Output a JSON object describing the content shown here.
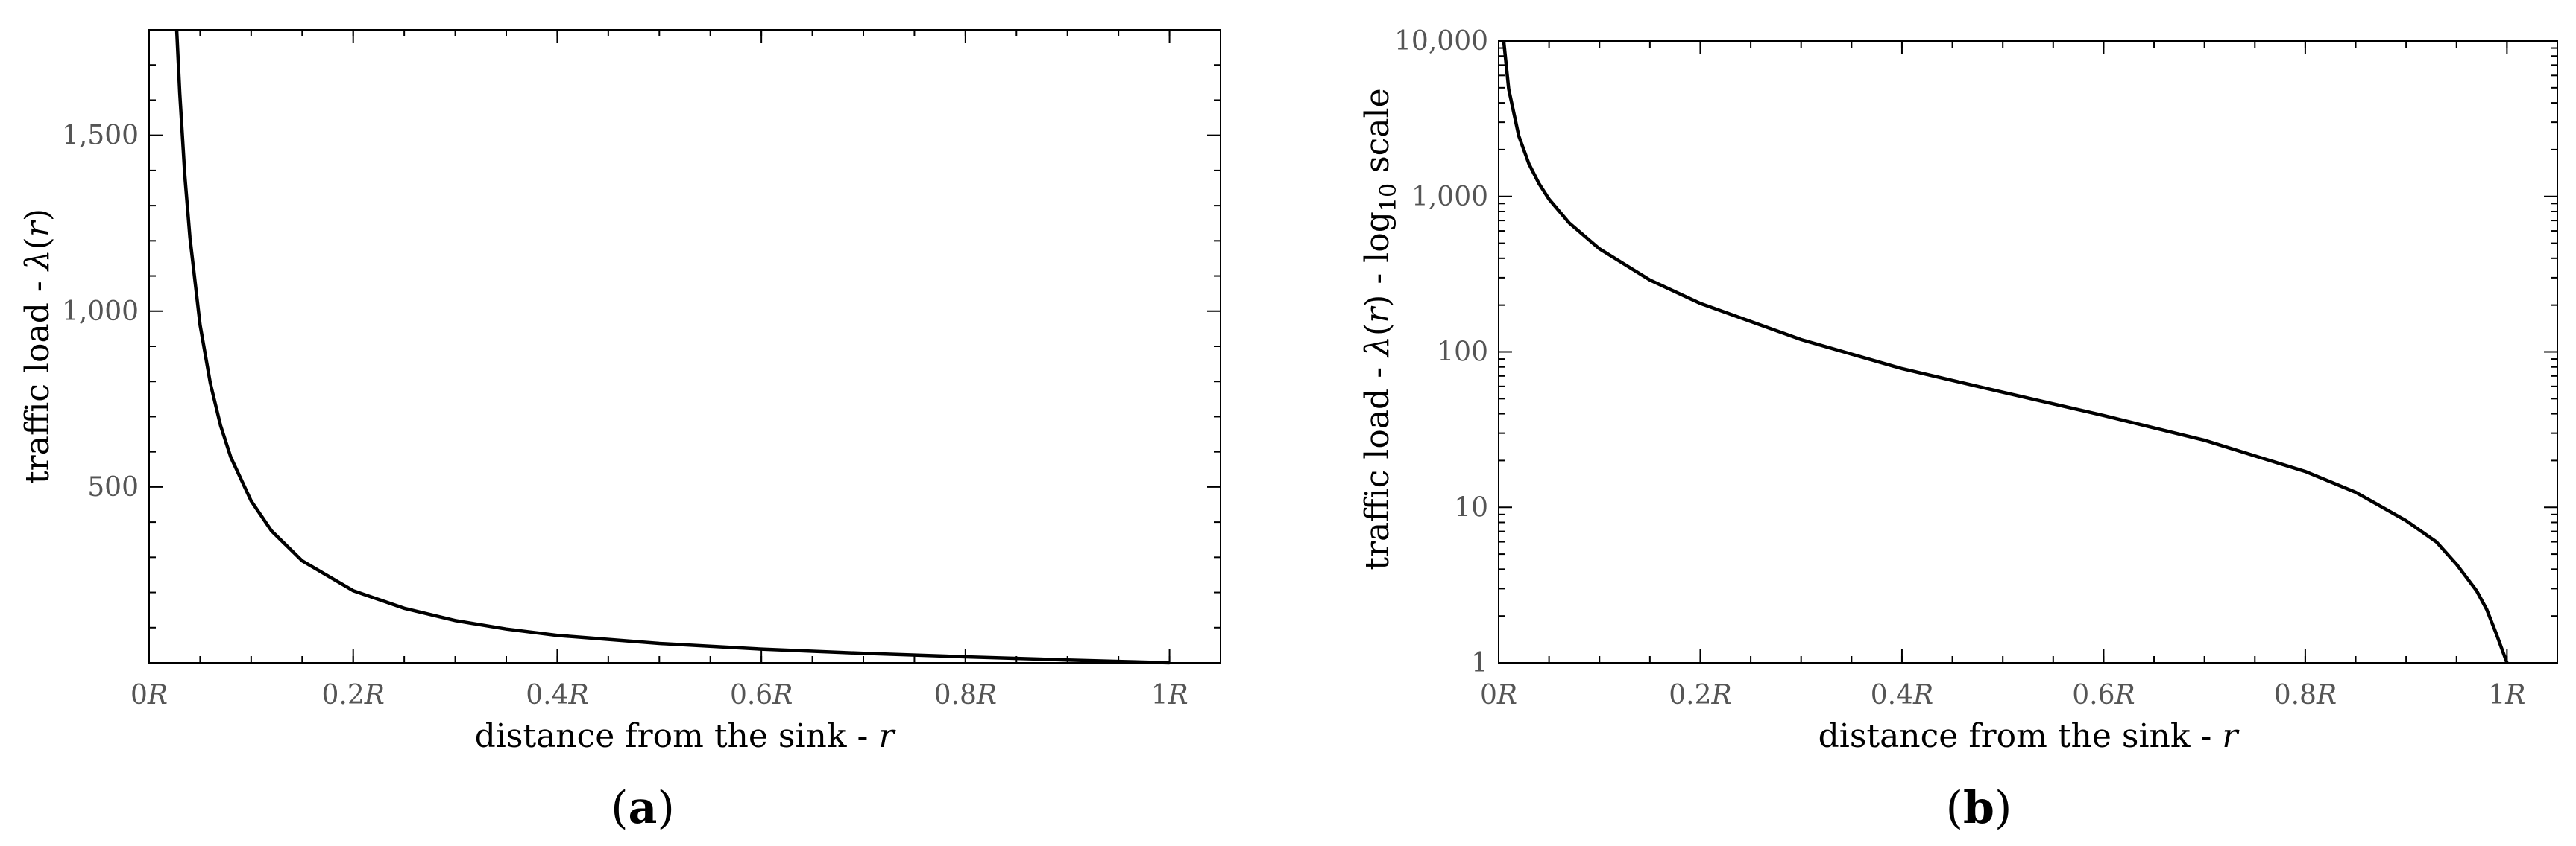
{
  "chart_data": [
    {
      "type": "line",
      "panel_label": {
        "open": "(",
        "letter": "a",
        "close": ")"
      },
      "xlabel": {
        "text": "distance from the sink - ",
        "var": "r"
      },
      "ylabel": {
        "text": "traffic load - ",
        "func": "λ",
        "open": "(",
        "var": "r",
        "close": ")"
      },
      "xlim": [
        0,
        1.05
      ],
      "ylim": [
        0,
        1800
      ],
      "yscale": "linear",
      "grid": false,
      "x_ticks": [
        {
          "value": 0,
          "num": "0",
          "unit": "R"
        },
        {
          "value": 0.2,
          "num": "0.2",
          "unit": "R"
        },
        {
          "value": 0.4,
          "num": "0.4",
          "unit": "R"
        },
        {
          "value": 0.6,
          "num": "0.6",
          "unit": "R"
        },
        {
          "value": 0.8,
          "num": "0.8",
          "unit": "R"
        },
        {
          "value": 1,
          "num": "1",
          "unit": "R"
        }
      ],
      "y_ticks": [
        {
          "value": 500,
          "label": "500"
        },
        {
          "value": 1000,
          "label": "1,000"
        },
        {
          "value": 1500,
          "label": "1,500"
        }
      ],
      "series": [
        {
          "x": [
            0.027,
            0.03,
            0.035,
            0.04,
            0.05,
            0.06,
            0.07,
            0.08,
            0.1,
            0.12,
            0.15,
            0.2,
            0.25,
            0.3,
            0.35,
            0.4,
            0.5,
            0.6,
            0.7,
            0.8,
            0.9,
            0.95,
            1.0
          ],
          "y": [
            1800,
            1620,
            1385,
            1210,
            960,
            795,
            675,
            585,
            460,
            375,
            290,
            205,
            155,
            120,
            96,
            78,
            55,
            39,
            27,
            17,
            8,
            4,
            0
          ]
        }
      ]
    },
    {
      "type": "line",
      "panel_label": {
        "open": "(",
        "letter": "b",
        "close": ")"
      },
      "xlabel": {
        "text": "distance from the sink - ",
        "var": "r"
      },
      "ylabel": {
        "text": "traffic load - ",
        "func": "λ",
        "open": "(",
        "var": "r",
        "close": ")",
        "tail": " - log",
        "sub": "10",
        "end": " scale"
      },
      "xlim": [
        0,
        1.05
      ],
      "ylim": [
        1,
        10000
      ],
      "yscale": "log",
      "grid": false,
      "x_ticks": [
        {
          "value": 0,
          "num": "0",
          "unit": "R"
        },
        {
          "value": 0.2,
          "num": "0.2",
          "unit": "R"
        },
        {
          "value": 0.4,
          "num": "0.4",
          "unit": "R"
        },
        {
          "value": 0.6,
          "num": "0.6",
          "unit": "R"
        },
        {
          "value": 0.8,
          "num": "0.8",
          "unit": "R"
        },
        {
          "value": 1,
          "num": "1",
          "unit": "R"
        }
      ],
      "y_ticks": [
        {
          "value": 1,
          "label": "1"
        },
        {
          "value": 10,
          "label": "10"
        },
        {
          "value": 100,
          "label": "100"
        },
        {
          "value": 1000,
          "label": "1,000"
        },
        {
          "value": 10000,
          "label": "10,000"
        }
      ],
      "series": [
        {
          "x": [
            0.005,
            0.01,
            0.02,
            0.03,
            0.04,
            0.05,
            0.07,
            0.1,
            0.15,
            0.2,
            0.3,
            0.4,
            0.5,
            0.6,
            0.7,
            0.8,
            0.85,
            0.9,
            0.93,
            0.95,
            0.97,
            0.98,
            0.99,
            1.0
          ],
          "y": [
            10000,
            4900,
            2450,
            1620,
            1210,
            960,
            675,
            460,
            290,
            205,
            120,
            78,
            55,
            39,
            27,
            17,
            12.5,
            8.2,
            6,
            4.3,
            2.9,
            2.2,
            1.5,
            1
          ]
        }
      ]
    }
  ]
}
